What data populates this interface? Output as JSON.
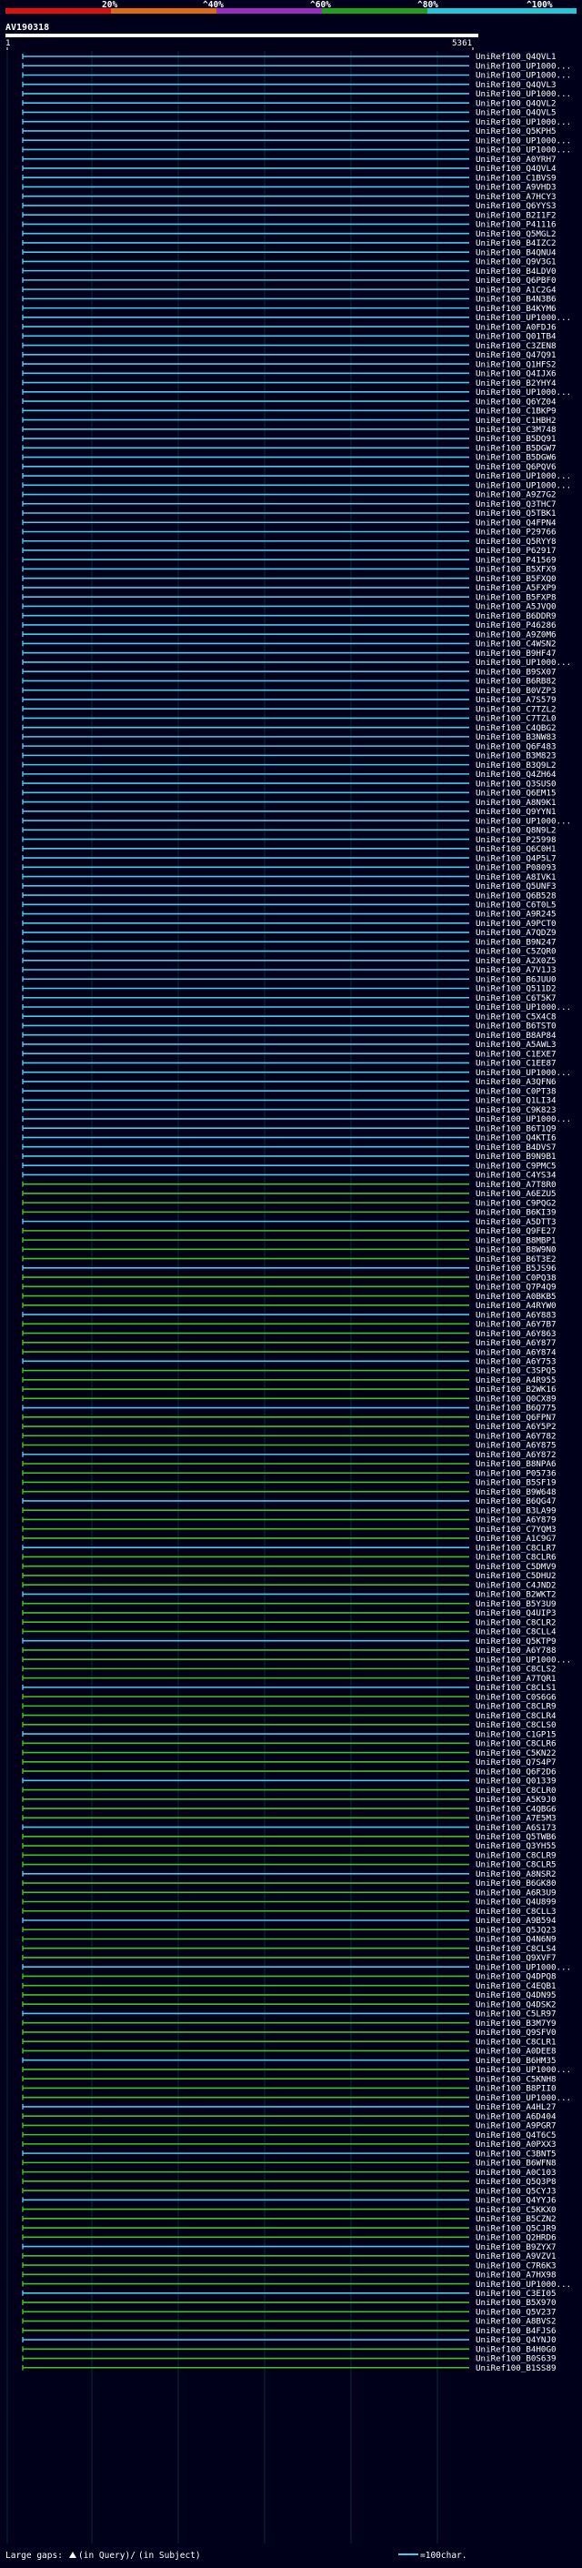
{
  "query_id": "AV190318",
  "ruler": {
    "start": "1",
    "end": "5361"
  },
  "legend": {
    "labels": [
      "20%",
      "^40%",
      "^60%",
      "^80%",
      "^100%"
    ],
    "colors": [
      "#e01010",
      "#e06a10",
      "#9a2fbf",
      "#1fa01f",
      "#22c8d8"
    ]
  },
  "footer": {
    "large_gaps_label": "Large gaps:",
    "in_query_label": "(in Query)/",
    "in_subject_label": "(in Subject)",
    "scale_label": "=100char."
  },
  "row_colors": {
    "cyan": "#4ec8e8",
    "green": "#44c21a",
    "white": "#ffffff"
  },
  "hit_ids": [
    "UniRef100_Q4QVL1",
    "UniRef100_UP1000...",
    "UniRef100_UP1000...",
    "UniRef100_Q4QVL3",
    "UniRef100_UP1000...",
    "UniRef100_Q4QVL2",
    "UniRef100_Q4QVL5",
    "UniRef100_UP1000...",
    "UniRef100_Q5KPH5",
    "UniRef100_UP1000...",
    "UniRef100_UP1000...",
    "UniRef100_A0YRH7",
    "UniRef100_Q4QVL4",
    "UniRef100_C1BVS9",
    "UniRef100_A9VHD3",
    "UniRef100_A7HCY3",
    "UniRef100_Q6YYS3",
    "UniRef100_B2I1F2",
    "UniRef100_P41116",
    "UniRef100_Q5MGL2",
    "UniRef100_B4IZC2",
    "UniRef100_B4QNU4",
    "UniRef100_Q9V3G1",
    "UniRef100_B4LDV0",
    "UniRef100_Q6PBF0",
    "UniRef100_A1C2G4",
    "UniRef100_B4N3B6",
    "UniRef100_B4KYM6",
    "UniRef100_UP1000...",
    "UniRef100_A0FDJ6",
    "UniRef100_Q01TB4",
    "UniRef100_C3ZEN8",
    "UniRef100_Q47Q91",
    "UniRef100_Q1HFS2",
    "UniRef100_Q4IJX6",
    "UniRef100_B2YHY4",
    "UniRef100_UP1000...",
    "UniRef100_Q6YZ04",
    "UniRef100_C1BKP9",
    "UniRef100_C1HBH2",
    "UniRef100_C3M748",
    "UniRef100_B5DQ91",
    "UniRef100_B5DGW7",
    "UniRef100_B5DGW6",
    "UniRef100_Q6PQV6",
    "UniRef100_UP1000...",
    "UniRef100_UP1000...",
    "UniRef100_A9Z7G2",
    "UniRef100_Q3THC7",
    "UniRef100_Q5TBK1",
    "UniRef100_Q4FPN4",
    "UniRef100_P29766",
    "UniRef100_Q5RYY8",
    "UniRef100_P62917",
    "UniRef100_P41569",
    "UniRef100_B5XFX9",
    "UniRef100_B5FXQ0",
    "UniRef100_A5FXP9",
    "UniRef100_B5FXP8",
    "UniRef100_A5JVQ0",
    "UniRef100_B6DDR9",
    "UniRef100_P46286",
    "UniRef100_A9Z0M6",
    "UniRef100_C4WSN2",
    "UniRef100_B9HF47",
    "UniRef100_UP1000...",
    "UniRef100_B9SX07",
    "UniRef100_B6RB82",
    "UniRef100_B0VZP3",
    "UniRef100_A7S579",
    "UniRef100_C7TZL2",
    "UniRef100_C7TZL0",
    "UniRef100_C4QBG2",
    "UniRef100_B3NW83",
    "UniRef100_Q6F483",
    "UniRef100_B3M823",
    "UniRef100_B3Q9L2",
    "UniRef100_Q4ZH64",
    "UniRef100_Q3SUS0",
    "UniRef100_Q6EM15",
    "UniRef100_A8N9K1",
    "UniRef100_Q9YYN1",
    "UniRef100_UP1000...",
    "UniRef100_Q8N9L2",
    "UniRef100_P25998",
    "UniRef100_Q6C0H1",
    "UniRef100_Q4P5L7",
    "UniRef100_P08093",
    "UniRef100_A8IVK1",
    "UniRef100_Q5UNF3",
    "UniRef100_Q6B528",
    "UniRef100_C6T0L5",
    "UniRef100_A9R245",
    "UniRef100_A9PCT0",
    "UniRef100_A7QDZ9",
    "UniRef100_B9N247",
    "UniRef100_C5ZQR0",
    "UniRef100_A2X0Z5",
    "UniRef100_A7V1J3",
    "UniRef100_B6JUU0",
    "UniRef100_Q511D2",
    "UniRef100_C6T5K7",
    "UniRef100_UP1000...",
    "UniRef100_C5X4C8",
    "UniRef100_B6TST0",
    "UniRef100_B8AP84",
    "UniRef100_A5AWL3",
    "UniRef100_C1EXE7",
    "UniRef100_C1EE87",
    "UniRef100_UP1000...",
    "UniRef100_A3QFN6",
    "UniRef100_C0PT38",
    "UniRef100_Q1LI34",
    "UniRef100_C9K823",
    "UniRef100_UP1000...",
    "UniRef100_B6T1Q9",
    "UniRef100_Q4KTI6",
    "UniRef100_B4DVS7",
    "UniRef100_B9N9B1",
    "UniRef100_C9PMC5",
    "UniRef100_C4YS34",
    "UniRef100_A7T8R0",
    "UniRef100_A6EZU5",
    "UniRef100_C9PQG2",
    "UniRef100_B6KI39",
    "UniRef100_A5DTT3",
    "UniRef100_Q9FE27",
    "UniRef100_B8MBP1",
    "UniRef100_B8W9N0",
    "UniRef100_B6T3E2",
    "UniRef100_B5JS96",
    "UniRef100_C0PQ38",
    "UniRef100_Q7P4Q9",
    "UniRef100_A0BKB5",
    "UniRef100_A4RYW0",
    "UniRef100_A6Y883",
    "UniRef100_A6Y7B7",
    "UniRef100_A6Y863",
    "UniRef100_A6Y877",
    "UniRef100_A6Y874",
    "UniRef100_A6Y753",
    "UniRef100_C3SPQ5",
    "UniRef100_A4R955",
    "UniRef100_B2WK16",
    "UniRef100_Q0CX89",
    "UniRef100_B6Q775",
    "UniRef100_Q6FPN7",
    "UniRef100_A6Y5P2",
    "UniRef100_A6Y782",
    "UniRef100_A6Y875",
    "UniRef100_A6Y872",
    "UniRef100_B8NPA6",
    "UniRef100_P05736",
    "UniRef100_B5SF19",
    "UniRef100_B9W648",
    "UniRef100_B6QG47",
    "UniRef100_B3LA99",
    "UniRef100_A6Y879",
    "UniRef100_C7YQM3",
    "UniRef100_A1C9G7",
    "UniRef100_C8CLR7",
    "UniRef100_C8CLR6",
    "UniRef100_C5DMV9",
    "UniRef100_C5DHU2",
    "UniRef100_C4JND2",
    "UniRef100_B2WKT2",
    "UniRef100_B5Y3U9",
    "UniRef100_Q4UIP3",
    "UniRef100_C8CLR2",
    "UniRef100_C8CLL4",
    "UniRef100_Q5KTP9",
    "UniRef100_A6Y788",
    "UniRef100_UP1000...",
    "UniRef100_C8CLS2",
    "UniRef100_A7TQR1",
    "UniRef100_C8CLS1",
    "UniRef100_C0S6G6",
    "UniRef100_C8CLR9",
    "UniRef100_C8CLR4",
    "UniRef100_C8CLS0",
    "UniRef100_C1GP15",
    "UniRef100_C8CLR6",
    "UniRef100_C5KN22",
    "UniRef100_Q7S4P7",
    "UniRef100_Q6F2D6",
    "UniRef100_Q01339",
    "UniRef100_C8CLR0",
    "UniRef100_A5K9J0",
    "UniRef100_C4QBG6",
    "UniRef100_A7E5M3",
    "UniRef100_A6S173",
    "UniRef100_Q5TWB6",
    "UniRef100_Q3YH55",
    "UniRef100_C8CLR9",
    "UniRef100_C8CLR5",
    "UniRef100_A8NSR2",
    "UniRef100_B6GK80",
    "UniRef100_A6R3U9",
    "UniRef100_Q4U899",
    "UniRef100_C8CLL3",
    "UniRef100_A9B594",
    "UniRef100_Q5JQ23",
    "UniRef100_Q4N6N9",
    "UniRef100_C8CLS4",
    "UniRef100_Q9XVF7",
    "UniRef100_UP1000...",
    "UniRef100_Q4DPQ8",
    "UniRef100_C4EQB1",
    "UniRef100_Q4DN95",
    "UniRef100_Q4DSK2",
    "UniRef100_C5LR97",
    "UniRef100_B3M7Y9",
    "UniRef100_Q9SFV0",
    "UniRef100_C8CLR1",
    "UniRef100_A0DEE8",
    "UniRef100_B6HM35",
    "UniRef100_UP1000...",
    "UniRef100_C5KNH8",
    "UniRef100_B8PII0",
    "UniRef100_UP1000...",
    "UniRef100_A4HL27",
    "UniRef100_A6D404",
    "UniRef100_A9PGR7",
    "UniRef100_Q4T6C5",
    "UniRef100_A0PXX3",
    "UniRef100_C3BNT5",
    "UniRef100_B6WFN8",
    "UniRef100_A0C103",
    "UniRef100_Q5Q3P8",
    "UniRef100_Q5CYJ3",
    "UniRef100_Q4YYJ6",
    "UniRef100_C5KKX0",
    "UniRef100_B5CZN2",
    "UniRef100_Q5CJR9",
    "UniRef100_Q2HRD6",
    "UniRef100_B9ZYX7",
    "UniRef100_A9VZV1",
    "UniRef100_C7R6K3",
    "UniRef100_A7HX98",
    "UniRef100_UP1000...",
    "UniRef100_C3EI05",
    "UniRef100_B5X970",
    "UniRef100_Q5V237",
    "UniRef100_A8BVS2",
    "UniRef100_B4FJS6",
    "UniRef100_Q4YNJ0",
    "UniRef100_B4H0G0",
    "UniRef100_B0S639",
    "UniRef100_B1SS89"
  ]
}
